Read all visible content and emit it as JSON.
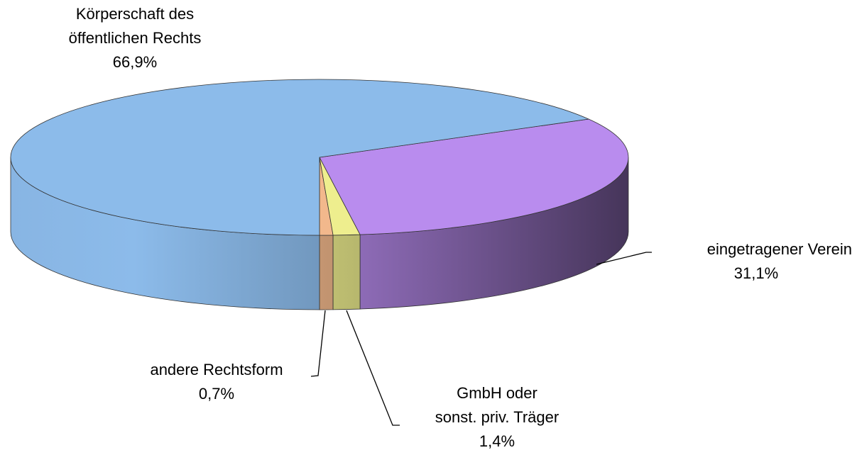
{
  "chart_data": {
    "type": "pie3d",
    "categories": [
      "andere Rechtsform",
      "GmbH oder\nsonst. priv. Träger",
      "eingetragener Verein",
      "Körperschaft des\nöffentlichen Rechts"
    ],
    "values": [
      0.7,
      1.4,
      31.1,
      66.9
    ],
    "value_labels": [
      "0,7%",
      "1,4%",
      "31,1%",
      "66,9%"
    ],
    "colors": [
      "#f2b88c",
      "#eeee8e",
      "#b98cee",
      "#8cbbea"
    ]
  }
}
